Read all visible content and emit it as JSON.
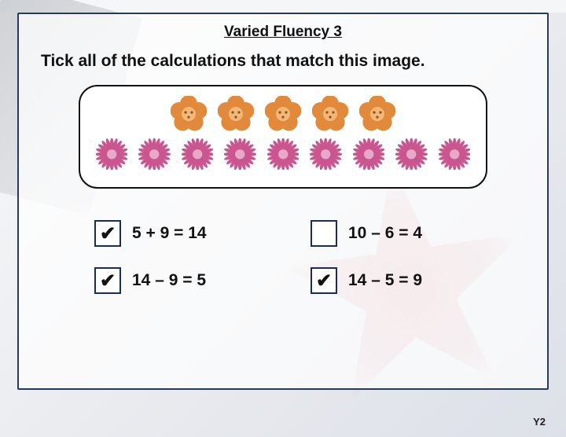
{
  "title": "Varied Fluency 3",
  "instruction": "Tick all of the calculations that match this image.",
  "flowers": {
    "row1_count": 5,
    "row2_count": 9,
    "row1_color": "#e28a3b",
    "row2_color": "#c9568f",
    "row1_center": "#f3b878",
    "row2_center": "#e8a8c9"
  },
  "options": [
    {
      "label": "5 + 9 = 14",
      "checked": true
    },
    {
      "label": "10 – 6 = 4",
      "checked": false
    },
    {
      "label": "14 – 9 = 5",
      "checked": true
    },
    {
      "label": "14 – 5 = 9",
      "checked": true
    }
  ],
  "footer": "Y2",
  "colors": {
    "card_border": "#2b3a5a",
    "checkbox_border": "#1a2d5a",
    "text": "#111111",
    "card_bg": "rgba(255,255,255,0.72)"
  }
}
